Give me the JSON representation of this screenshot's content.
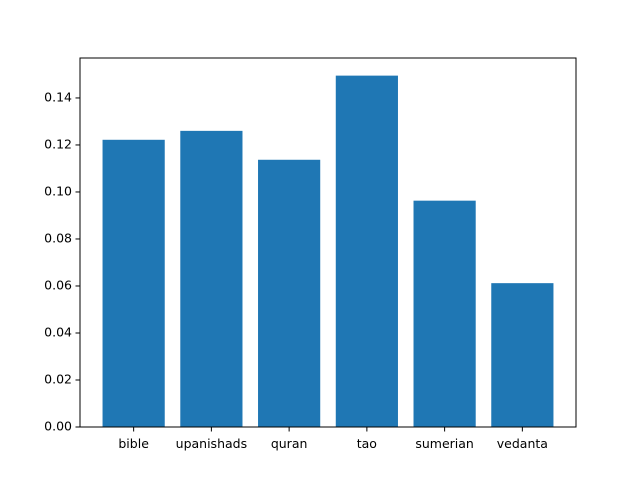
{
  "chart_data": {
    "type": "bar",
    "title": "",
    "xlabel": "",
    "ylabel": "",
    "categories": [
      "bible",
      "upanishads",
      "quran",
      "tao",
      "sumerian",
      "vedanta"
    ],
    "values": [
      0.1222,
      0.126,
      0.1137,
      0.1495,
      0.0963,
      0.0612
    ],
    "ylim": [
      0,
      0.157
    ],
    "yticks": [
      "0.00",
      "0.02",
      "0.04",
      "0.06",
      "0.08",
      "0.10",
      "0.12",
      "0.14"
    ],
    "grid": false,
    "legend": "none",
    "bar_color": "#1f77b4"
  }
}
